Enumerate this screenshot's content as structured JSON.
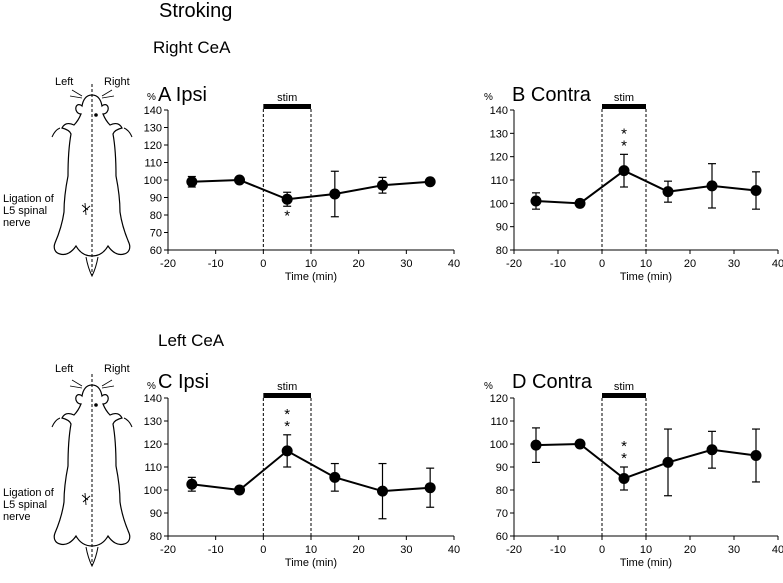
{
  "figure_title": "Stroking",
  "sections": {
    "right": "Right CeA",
    "left": "Left CeA"
  },
  "rat_labels": {
    "left": "Left",
    "right": "Right",
    "ligation": [
      "Ligation of",
      "L5 spinal",
      "nerve"
    ]
  },
  "chart_data": [
    {
      "type": "line",
      "panel": "A",
      "side": "Ipsi",
      "x": [
        -15,
        -5,
        5,
        15,
        25,
        35
      ],
      "values": [
        99,
        100,
        89,
        92,
        97,
        99
      ],
      "errors": [
        3,
        1.5,
        4,
        13,
        4.5,
        1.5
      ],
      "significance": [
        {
          "x": 5,
          "label": "*",
          "position": "below"
        }
      ],
      "stim": {
        "label": "stim",
        "range": [
          0,
          10
        ]
      },
      "ylabel": "%",
      "xlabel": "Time (min)",
      "xlim": [
        -20,
        40
      ],
      "xticks": [
        -20,
        -10,
        0,
        10,
        20,
        30,
        40
      ],
      "ylim": [
        60,
        140
      ],
      "yticks": [
        60,
        70,
        80,
        90,
        100,
        110,
        120,
        130,
        140
      ]
    },
    {
      "type": "line",
      "panel": "B",
      "side": "Contra",
      "x": [
        -15,
        -5,
        5,
        15,
        25,
        35
      ],
      "values": [
        101,
        100,
        114,
        105,
        107.5,
        105.5
      ],
      "errors": [
        3.5,
        1.5,
        7,
        4.5,
        9.5,
        8
      ],
      "significance": [
        {
          "x": 5,
          "label": "*",
          "position": "above"
        },
        {
          "x": 5,
          "label": "*",
          "position": "above"
        }
      ],
      "stim": {
        "label": "stim",
        "range": [
          0,
          10
        ]
      },
      "ylabel": "%",
      "xlabel": "Time (min)",
      "xlim": [
        -20,
        40
      ],
      "xticks": [
        -20,
        -10,
        0,
        10,
        20,
        30,
        40
      ],
      "ylim": [
        80,
        140
      ],
      "yticks": [
        80,
        90,
        100,
        110,
        120,
        130,
        140
      ]
    },
    {
      "type": "line",
      "panel": "C",
      "side": "Ipsi",
      "x": [
        -15,
        -5,
        5,
        15,
        25,
        35
      ],
      "values": [
        102.5,
        100,
        117,
        105.5,
        99.5,
        101
      ],
      "errors": [
        3,
        1.5,
        7,
        6,
        12,
        8.5
      ],
      "significance": [
        {
          "x": 5,
          "label": "*",
          "position": "above"
        },
        {
          "x": 5,
          "label": "*",
          "position": "above"
        }
      ],
      "stim": {
        "label": "stim",
        "range": [
          0,
          10
        ]
      },
      "ylabel": "%",
      "xlabel": "Time (min)",
      "xlim": [
        -20,
        40
      ],
      "xticks": [
        -20,
        -10,
        0,
        10,
        20,
        30,
        40
      ],
      "ylim": [
        80,
        140
      ],
      "yticks": [
        80,
        90,
        100,
        110,
        120,
        130,
        140
      ]
    },
    {
      "type": "line",
      "panel": "D",
      "side": "Contra",
      "x": [
        -15,
        -5,
        5,
        15,
        25,
        35
      ],
      "values": [
        99.5,
        100,
        85,
        92,
        97.5,
        95
      ],
      "errors": [
        7.5,
        1.5,
        5,
        14.5,
        8,
        11.5
      ],
      "significance": [
        {
          "x": 5,
          "label": "*",
          "position": "above"
        },
        {
          "x": 5,
          "label": "*",
          "position": "above"
        }
      ],
      "stim": {
        "label": "stim",
        "range": [
          0,
          10
        ]
      },
      "ylabel": "%",
      "xlabel": "Time (min)",
      "xlim": [
        -20,
        40
      ],
      "xticks": [
        -20,
        -10,
        0,
        10,
        20,
        30,
        40
      ],
      "ylim": [
        60,
        120
      ],
      "yticks": [
        60,
        70,
        80,
        90,
        100,
        110,
        120
      ]
    }
  ]
}
